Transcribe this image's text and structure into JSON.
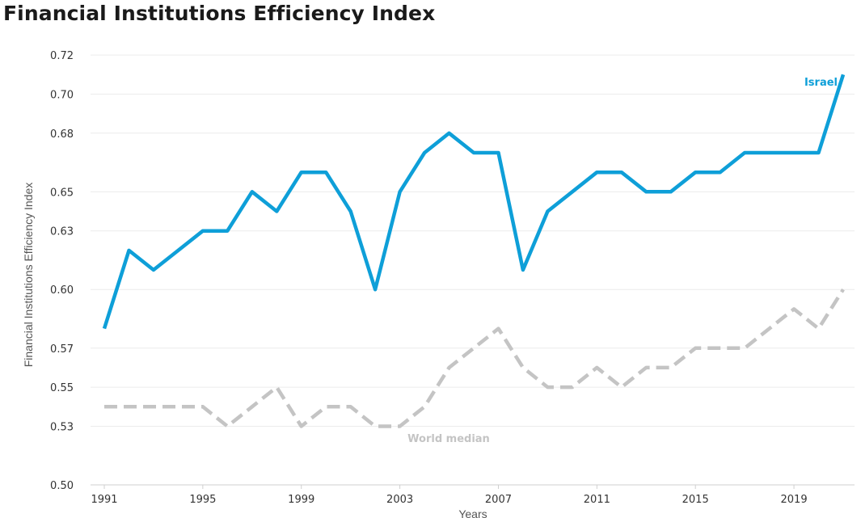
{
  "title": "Financial Institutions Efficiency Index",
  "chart_data": {
    "type": "line",
    "title": "Financial Institutions Efficiency Index",
    "xlabel": "Years",
    "ylabel": "Financial Institutions Efficiency Index",
    "x": [
      1991,
      1992,
      1993,
      1994,
      1995,
      1996,
      1997,
      1998,
      1999,
      2000,
      2001,
      2002,
      2003,
      2004,
      2005,
      2006,
      2007,
      2008,
      2009,
      2010,
      2011,
      2012,
      2013,
      2014,
      2015,
      2016,
      2017,
      2018,
      2019,
      2020,
      2021
    ],
    "x_ticks": [
      "1991",
      "1995",
      "1999",
      "2003",
      "2007",
      "2011",
      "2015",
      "2019"
    ],
    "y_ticks": [
      "0.50",
      "0.53",
      "0.55",
      "0.57",
      "0.60",
      "0.63",
      "0.65",
      "0.68",
      "0.70",
      "0.72"
    ],
    "ylim": [
      0.5,
      0.725
    ],
    "grid": true,
    "series": [
      {
        "name": "Israel",
        "color": "#0e9fd8",
        "style": "solid",
        "values": [
          0.58,
          0.62,
          0.61,
          0.62,
          0.63,
          0.63,
          0.65,
          0.64,
          0.66,
          0.66,
          0.64,
          0.6,
          0.65,
          0.67,
          0.68,
          0.67,
          0.67,
          0.61,
          0.64,
          0.65,
          0.66,
          0.66,
          0.65,
          0.65,
          0.66,
          0.66,
          0.67,
          0.67,
          0.67,
          0.67,
          0.71
        ]
      },
      {
        "name": "World median",
        "color": "#c4c4c4",
        "style": "dashed",
        "values": [
          0.54,
          0.54,
          0.54,
          0.54,
          0.54,
          0.53,
          0.54,
          0.55,
          0.53,
          0.54,
          0.54,
          0.53,
          0.53,
          0.54,
          0.56,
          0.57,
          0.58,
          0.56,
          0.55,
          0.55,
          0.56,
          0.55,
          0.56,
          0.56,
          0.57,
          0.57,
          0.57,
          0.58,
          0.59,
          0.58,
          0.6
        ]
      }
    ]
  }
}
